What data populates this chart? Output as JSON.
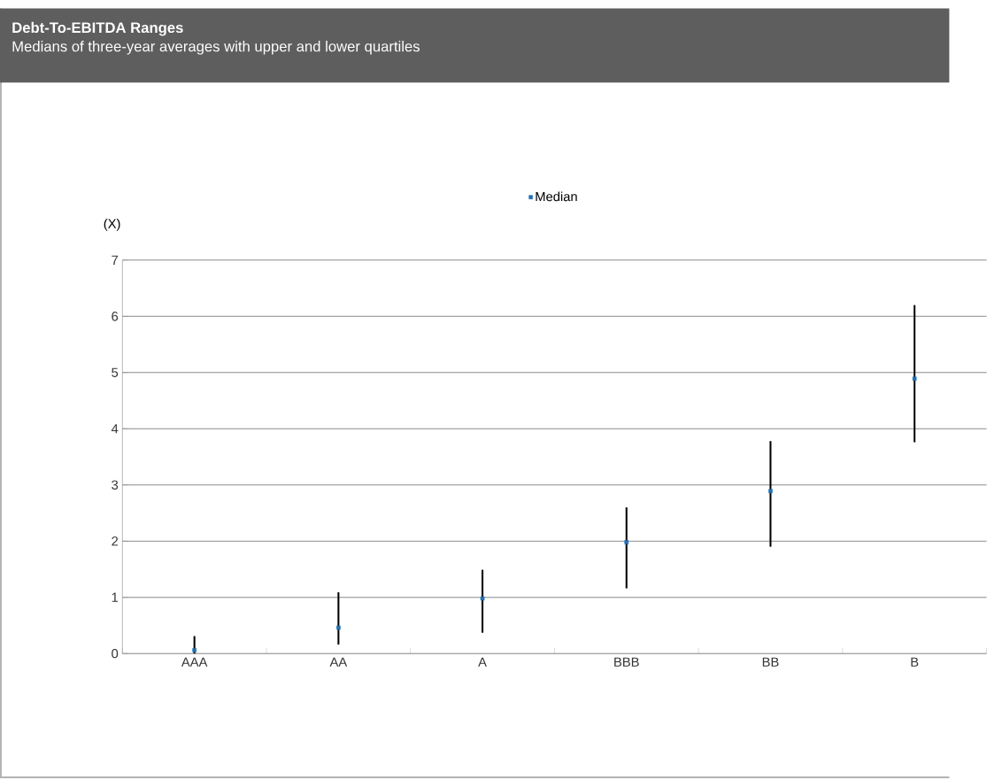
{
  "chart_data": {
    "type": "scatter",
    "title": "Debt-To-EBITDA Ranges",
    "subtitle": "Medians of three-year averages with upper and lower quartiles",
    "ylabel": "(X)",
    "categories": [
      "AAA",
      "AA",
      "A",
      "BBB",
      "BB",
      "B"
    ],
    "series": [
      {
        "name": "Median",
        "color": "#1f6fb4",
        "values": [
          0.06,
          0.46,
          0.98,
          1.98,
          2.89,
          4.89
        ],
        "errors": [
          [
            0,
            0.31
          ],
          [
            0.16,
            1.09
          ],
          [
            0.37,
            1.49
          ],
          [
            1.16,
            2.6
          ],
          [
            1.9,
            3.78
          ],
          [
            3.76,
            6.2
          ]
        ]
      }
    ],
    "ylim": [
      0,
      7
    ],
    "yticks": [
      0,
      1,
      2,
      3,
      4,
      5,
      6,
      7
    ],
    "grid": "y",
    "legend": "top",
    "marker": "square"
  }
}
